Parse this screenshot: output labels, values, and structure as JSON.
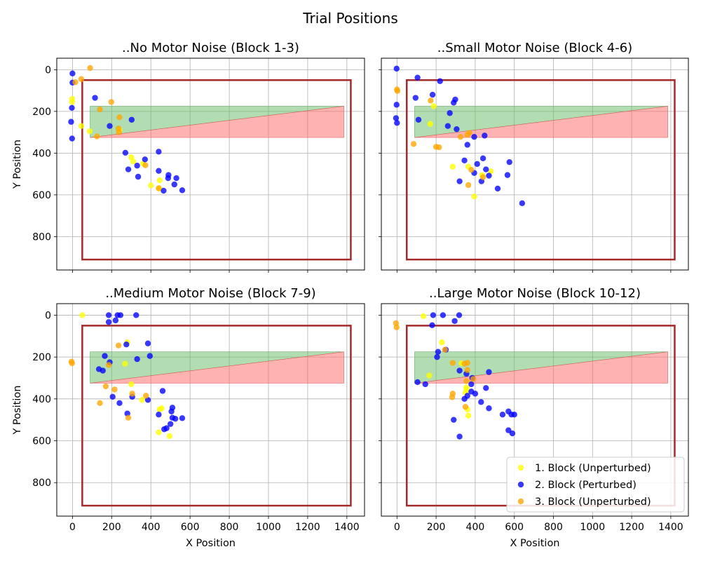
{
  "figure": {
    "title": "Trial Positions"
  },
  "colors": {
    "block1": "#ffff00",
    "block2": "#0000ff",
    "block3": "#ffa500",
    "boundary": "#a52a2a",
    "green_region": "#66bb66",
    "red_region": "#ff6666"
  },
  "chart_data": [
    {
      "type": "scatter",
      "title": "..No Motor Noise (Block 1-3)",
      "xlabel": "",
      "ylabel": "Y Position",
      "xlim": [
        -80,
        1490
      ],
      "ylim": [
        960,
        -55
      ],
      "y_inverted": true,
      "xticks": [
        0,
        200,
        400,
        600,
        800,
        1000,
        1200,
        1400
      ],
      "yticks": [
        0,
        200,
        400,
        600,
        800
      ],
      "show_xtick_labels": false,
      "show_ytick_labels": true,
      "grid": true,
      "legend": null,
      "boundary_rect": {
        "x0": 50,
        "x1": 1420,
        "y0": 50,
        "y1": 910
      },
      "green_region": [
        [
          90,
          175
        ],
        [
          1385,
          175
        ],
        [
          90,
          325
        ]
      ],
      "red_region": [
        [
          90,
          325
        ],
        [
          1385,
          175
        ],
        [
          1385,
          325
        ]
      ],
      "series": [
        {
          "name": "1. Block (Unperturbed)",
          "color_key": "block1",
          "points": [
            [
              -2,
              140
            ],
            [
              -2,
              155
            ],
            [
              45,
              270
            ],
            [
              88,
              295
            ],
            [
              240,
              290
            ],
            [
              300,
              420
            ],
            [
              310,
              440
            ],
            [
              360,
              450
            ],
            [
              400,
              555
            ],
            [
              445,
              530
            ],
            [
              442,
              570
            ]
          ]
        },
        {
          "name": "2. Block (Perturbed)",
          "color_key": "block2",
          "points": [
            [
              0,
              18
            ],
            [
              0,
              62
            ],
            [
              -3,
              183
            ],
            [
              -7,
              250
            ],
            [
              -2,
              330
            ],
            [
              115,
              135
            ],
            [
              190,
              270
            ],
            [
              302,
              240
            ],
            [
              270,
              398
            ],
            [
              285,
              478
            ],
            [
              330,
              460
            ],
            [
              335,
              513
            ],
            [
              370,
              430
            ],
            [
              440,
              393
            ],
            [
              440,
              485
            ],
            [
              465,
              580
            ],
            [
              490,
              505
            ],
            [
              488,
              520
            ],
            [
              520,
              550
            ],
            [
              530,
              520
            ],
            [
              560,
              578
            ]
          ]
        },
        {
          "name": "3. Block (Unperturbed)",
          "color_key": "block3",
          "points": [
            [
              90,
              -8
            ],
            [
              45,
              45
            ],
            [
              15,
              60
            ],
            [
              140,
              190
            ],
            [
              198,
              155
            ],
            [
              125,
              320
            ],
            [
              240,
              228
            ],
            [
              235,
              282
            ],
            [
              237,
              300
            ],
            [
              372,
              458
            ],
            [
              440,
              568
            ]
          ]
        }
      ]
    },
    {
      "type": "scatter",
      "title": "..Small Motor Noise (Block 4-6)",
      "xlabel": "",
      "ylabel": "",
      "xlim": [
        -80,
        1490
      ],
      "ylim": [
        960,
        -55
      ],
      "y_inverted": true,
      "xticks": [
        0,
        200,
        400,
        600,
        800,
        1000,
        1200,
        1400
      ],
      "yticks": [
        0,
        200,
        400,
        600,
        800
      ],
      "show_xtick_labels": false,
      "show_ytick_labels": false,
      "grid": true,
      "legend": null,
      "boundary_rect": {
        "x0": 50,
        "x1": 1420,
        "y0": 50,
        "y1": 910
      },
      "green_region": [
        [
          90,
          175
        ],
        [
          1385,
          175
        ],
        [
          90,
          325
        ]
      ],
      "red_region": [
        [
          90,
          325
        ],
        [
          1385,
          175
        ],
        [
          1385,
          325
        ]
      ],
      "series": [
        {
          "name": "1. Block (Unperturbed)",
          "color_key": "block1",
          "points": [
            [
              170,
              260
            ],
            [
              188,
              175
            ],
            [
              285,
              465
            ],
            [
              365,
              465
            ],
            [
              435,
              505
            ],
            [
              480,
              487
            ],
            [
              395,
              608
            ]
          ]
        },
        {
          "name": "2. Block (Perturbed)",
          "color_key": "block2",
          "points": [
            [
              -2,
              -5
            ],
            [
              105,
              38
            ],
            [
              220,
              55
            ],
            [
              -2,
              168
            ],
            [
              -5,
              232
            ],
            [
              0,
              255
            ],
            [
              95,
              135
            ],
            [
              110,
              240
            ],
            [
              182,
              120
            ],
            [
              290,
              158
            ],
            [
              298,
              143
            ],
            [
              270,
              208
            ],
            [
              260,
              270
            ],
            [
              305,
              285
            ],
            [
              360,
              360
            ],
            [
              395,
              322
            ],
            [
              448,
              316
            ],
            [
              345,
              435
            ],
            [
              320,
              535
            ],
            [
              395,
              495
            ],
            [
              410,
              452
            ],
            [
              432,
              535
            ],
            [
              440,
              425
            ],
            [
              455,
              478
            ],
            [
              470,
              508
            ],
            [
              575,
              443
            ],
            [
              565,
              505
            ],
            [
              515,
              570
            ],
            [
              640,
              640
            ]
          ]
        },
        {
          "name": "3. Block (Unperturbed)",
          "color_key": "block3",
          "points": [
            [
              0,
              95
            ],
            [
              2,
              102
            ],
            [
              172,
              148
            ],
            [
              85,
              356
            ],
            [
              200,
              370
            ],
            [
              215,
              372
            ],
            [
              325,
              322
            ],
            [
              360,
              312
            ],
            [
              370,
              303
            ],
            [
              380,
              480
            ],
            [
              365,
              553
            ],
            [
              440,
              515
            ]
          ]
        }
      ]
    },
    {
      "type": "scatter",
      "title": "..Medium Motor Noise (Block 7-9)",
      "xlabel": "X Position",
      "ylabel": "Y Position",
      "xlim": [
        -80,
        1490
      ],
      "ylim": [
        960,
        -55
      ],
      "y_inverted": true,
      "xticks": [
        0,
        200,
        400,
        600,
        800,
        1000,
        1200,
        1400
      ],
      "yticks": [
        0,
        200,
        400,
        600,
        800
      ],
      "show_xtick_labels": true,
      "show_ytick_labels": true,
      "grid": true,
      "legend": null,
      "boundary_rect": {
        "x0": 50,
        "x1": 1420,
        "y0": 50,
        "y1": 910
      },
      "green_region": [
        [
          90,
          175
        ],
        [
          1385,
          175
        ],
        [
          90,
          325
        ]
      ],
      "red_region": [
        [
          90,
          325
        ],
        [
          1385,
          175
        ],
        [
          1385,
          325
        ]
      ],
      "series": [
        {
          "name": "1. Block (Unperturbed)",
          "color_key": "block1",
          "points": [
            [
              50,
              0
            ],
            [
              280,
              130
            ],
            [
              268,
              232
            ],
            [
              300,
              330
            ],
            [
              355,
              405
            ],
            [
              455,
              445
            ],
            [
              445,
              450
            ],
            [
              440,
              560
            ],
            [
              495,
              578
            ]
          ]
        },
        {
          "name": "2. Block (Perturbed)",
          "color_key": "block2",
          "points": [
            [
              185,
              0
            ],
            [
              230,
              0
            ],
            [
              245,
              0
            ],
            [
              325,
              0
            ],
            [
              185,
              33
            ],
            [
              220,
              25
            ],
            [
              275,
              140
            ],
            [
              385,
              135
            ],
            [
              165,
              195
            ],
            [
              395,
              195
            ],
            [
              330,
              210
            ],
            [
              190,
              225
            ],
            [
              135,
              258
            ],
            [
              155,
              265
            ],
            [
              205,
              390
            ],
            [
              240,
              420
            ],
            [
              305,
              390
            ],
            [
              385,
              405
            ],
            [
              460,
              362
            ],
            [
              440,
              475
            ],
            [
              505,
              460
            ],
            [
              510,
              442
            ],
            [
              510,
              490
            ],
            [
              525,
              495
            ],
            [
              560,
              492
            ],
            [
              500,
              520
            ],
            [
              480,
              540
            ],
            [
              468,
              545
            ],
            [
              280,
              470
            ]
          ]
        },
        {
          "name": "3. Block (Unperturbed)",
          "color_key": "block3",
          "points": [
            [
              -5,
              222
            ],
            [
              -2,
              230
            ],
            [
              235,
              145
            ],
            [
              185,
              238
            ],
            [
              170,
              340
            ],
            [
              215,
              355
            ],
            [
              305,
              375
            ],
            [
              375,
              385
            ],
            [
              140,
              420
            ],
            [
              285,
              490
            ]
          ]
        }
      ]
    },
    {
      "type": "scatter",
      "title": "..Large Motor Noise (Block 10-12)",
      "xlabel": "X Position",
      "ylabel": "",
      "xlim": [
        -80,
        1490
      ],
      "ylim": [
        960,
        -55
      ],
      "y_inverted": true,
      "xticks": [
        0,
        200,
        400,
        600,
        800,
        1000,
        1200,
        1400
      ],
      "yticks": [
        0,
        200,
        400,
        600,
        800
      ],
      "show_xtick_labels": true,
      "show_ytick_labels": false,
      "grid": true,
      "legend": {
        "placement": "lower right",
        "entries": [
          "1. Block (Unperturbed)",
          "2. Block (Perturbed)",
          "3. Block (Unperturbed)"
        ]
      },
      "boundary_rect": {
        "x0": 50,
        "x1": 1420,
        "y0": 50,
        "y1": 910
      },
      "green_region": [
        [
          90,
          175
        ],
        [
          1385,
          175
        ],
        [
          90,
          325
        ]
      ],
      "red_region": [
        [
          90,
          325
        ],
        [
          1385,
          175
        ],
        [
          1385,
          325
        ]
      ],
      "series": [
        {
          "name": "1. Block (Unperturbed)",
          "color_key": "block1",
          "points": [
            [
              135,
              5
            ],
            [
              230,
              130
            ],
            [
              165,
              288
            ],
            [
              330,
              230
            ],
            [
              355,
              345
            ],
            [
              355,
              355
            ],
            [
              360,
              450
            ],
            [
              365,
              480
            ],
            [
              350,
              370
            ]
          ]
        },
        {
          "name": "2. Block (Perturbed)",
          "color_key": "block2",
          "points": [
            [
              185,
              0
            ],
            [
              235,
              0
            ],
            [
              318,
              0
            ],
            [
              180,
              48
            ],
            [
              295,
              28
            ],
            [
              210,
              175
            ],
            [
              205,
              200
            ],
            [
              250,
              165
            ],
            [
              105,
              320
            ],
            [
              145,
              330
            ],
            [
              320,
              265
            ],
            [
              355,
              280
            ],
            [
              385,
              300
            ],
            [
              380,
              330
            ],
            [
              360,
              385
            ],
            [
              345,
              400
            ],
            [
              380,
              365
            ],
            [
              400,
              375
            ],
            [
              430,
              415
            ],
            [
              470,
              272
            ],
            [
              455,
              348
            ],
            [
              470,
              445
            ],
            [
              290,
              500
            ],
            [
              320,
              580
            ],
            [
              540,
              475
            ],
            [
              570,
              460
            ],
            [
              585,
              475
            ],
            [
              600,
              475
            ],
            [
              570,
              550
            ],
            [
              590,
              565
            ]
          ]
        },
        {
          "name": "3. Block (Unperturbed)",
          "color_key": "block3",
          "points": [
            [
              -5,
              38
            ],
            [
              -2,
              58
            ],
            [
              245,
              165
            ],
            [
              285,
              228
            ],
            [
              345,
              232
            ],
            [
              360,
              228
            ],
            [
              360,
              262
            ],
            [
              355,
              315
            ],
            [
              390,
              305
            ],
            [
              285,
              375
            ],
            [
              282,
              392
            ],
            [
              350,
              438
            ]
          ]
        }
      ]
    }
  ]
}
